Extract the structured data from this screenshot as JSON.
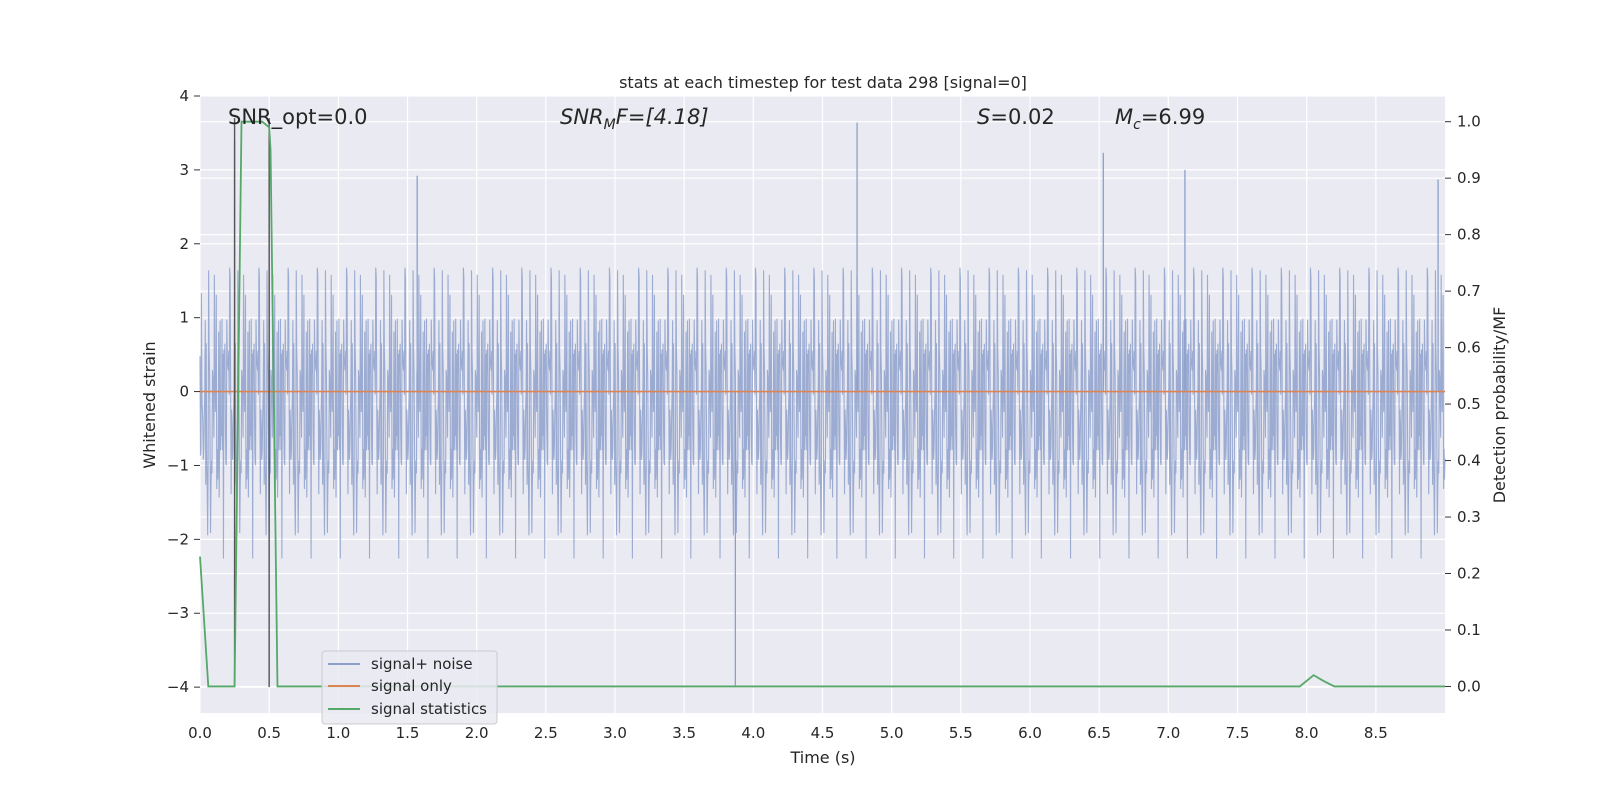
{
  "chart_data": {
    "type": "line",
    "title": "stats at each timestep for test data 298 [signal=0]",
    "xlabel": "Time (s)",
    "ylabel": "Whitened strain",
    "y2label": "Detection probability/MF",
    "xlim": [
      0.0,
      9.0
    ],
    "ylim": [
      -4.35,
      4.0
    ],
    "y2lim": [
      -0.047,
      1.0455
    ],
    "xticks": [
      "0.0",
      "0.5",
      "1.0",
      "1.5",
      "2.0",
      "2.5",
      "3.0",
      "3.5",
      "4.0",
      "4.5",
      "5.0",
      "5.5",
      "6.0",
      "6.5",
      "7.0",
      "7.5",
      "8.0",
      "8.5"
    ],
    "yticks": [
      "−4",
      "−3",
      "−2",
      "−1",
      "0",
      "1",
      "2",
      "3",
      "4"
    ],
    "y2ticks": [
      "0.0",
      "0.1",
      "0.2",
      "0.3",
      "0.4",
      "0.5",
      "0.6",
      "0.7",
      "0.8",
      "0.9",
      "1.0"
    ],
    "grid": true,
    "legend_position": "lower-left",
    "annotations": {
      "snr_opt": "SNR_opt=0.0",
      "snr_mf_base": "SNR",
      "snr_mf_sub": "M",
      "snr_mf_rest": "F=[4.18]",
      "s_sym": "S",
      "s_val": "=0.02",
      "mc_base": "M",
      "mc_sub": "c",
      "mc_val": "=6.99"
    },
    "series": [
      {
        "name": "signal+ noise",
        "axis": "left",
        "description": "whitened strain noise, roughly within -2.5 to 2.5 with spikes",
        "spikes": [
          {
            "x": 0.25,
            "y": 3.4
          },
          {
            "x": 0.5,
            "y": 2.9
          },
          {
            "x": 1.57,
            "y": 2.92
          },
          {
            "x": 3.87,
            "y": -4.0
          },
          {
            "x": 4.75,
            "y": 3.64
          },
          {
            "x": 6.53,
            "y": 3.23
          },
          {
            "x": 7.12,
            "y": 3.0
          },
          {
            "x": 8.95,
            "y": 2.87
          }
        ]
      },
      {
        "name": "signal only",
        "axis": "left",
        "x": [
          0.0,
          9.0
        ],
        "y": [
          0.0,
          0.0
        ]
      },
      {
        "name": "signal statistics",
        "axis": "right",
        "x": [
          0.0,
          0.06,
          0.2,
          0.25,
          0.3,
          0.45,
          0.5,
          0.51,
          0.56,
          7.9,
          7.95,
          8.05,
          8.12,
          8.2,
          8.25,
          9.0
        ],
        "y": [
          0.23,
          0.0,
          0.0,
          0.0,
          1.0,
          1.0,
          0.99,
          0.95,
          0.0,
          0.0,
          0.0,
          0.02,
          0.01,
          0.0,
          0.0,
          0.0
        ]
      }
    ],
    "vlines": [
      {
        "x": 0.25,
        "ymin": -4.0,
        "ymax": 3.7
      },
      {
        "x": 0.5,
        "ymin": -4.0,
        "ymax": 3.7
      }
    ],
    "colors": {
      "background": "#eaeaf2",
      "grid": "#ffffff",
      "noise": "#8da0cb",
      "signal": "#dd8452",
      "stat": "#55a868",
      "vline": "#555555"
    }
  }
}
